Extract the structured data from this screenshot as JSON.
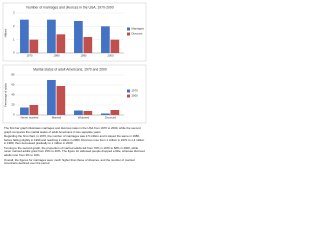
{
  "chart_data": [
    {
      "type": "bar",
      "title": "Number of marriages and divorces in the USA, 1970-2000",
      "y_label": "Millions",
      "categories": [
        "1970",
        "1980",
        "1990",
        "2000"
      ],
      "series": [
        {
          "name": "Marriages",
          "color": "#4472c4",
          "values": [
            2.5,
            2.5,
            2.4,
            2
          ]
        },
        {
          "name": "Divorces",
          "color": "#c0504d",
          "values": [
            1,
            1.4,
            1.2,
            1
          ]
        }
      ],
      "ylim": [
        0,
        3
      ],
      "yticks": [
        0,
        1,
        2,
        3
      ],
      "grid": true
    },
    {
      "type": "bar",
      "title": "Marital status of adult Americans, 1970 and 2000",
      "y_label": "Percentage of adults",
      "categories": [
        "Never married",
        "Married",
        "Widowed",
        "Divorced"
      ],
      "series": [
        {
          "name": "1970",
          "color": "#4472c4",
          "values": [
            15,
            70,
            9,
            3
          ]
        },
        {
          "name": "2000",
          "color": "#c0504d",
          "values": [
            20,
            58,
            8,
            10
          ]
        }
      ],
      "ylim": [
        0,
        80
      ],
      "yticks": [
        0,
        20,
        40,
        60,
        80
      ],
      "grid": true
    }
  ],
  "paragraphs": [
    "The first bar graph illustrates marriages and divorces rates in the USA from 1970 to 2000, while the second graph compares the marital status of adult Americans in two separate years.",
    "Regarding the first chart, in 1970, the number of marriages was 2.5 million and it stayed the same in 1980, before falling slightly in 1990 and reaching 2 million in 2000. Divorces rose from 1 million in 1970 to 1.4 million in 1980, then decreased gradually to 1 million in 2000.",
    "Turning to the second graph, the proportion of married adults fell from 70% in 1970 to 58% in 2000, while never married adults grew from 15% to 20%. The figure for widowed people dropped a little, whereas divorced adults rose from 3% to 10%.",
    "Overall, the figures for marriages were much higher than those of divorces, and the number of married Americans declined over the period."
  ]
}
